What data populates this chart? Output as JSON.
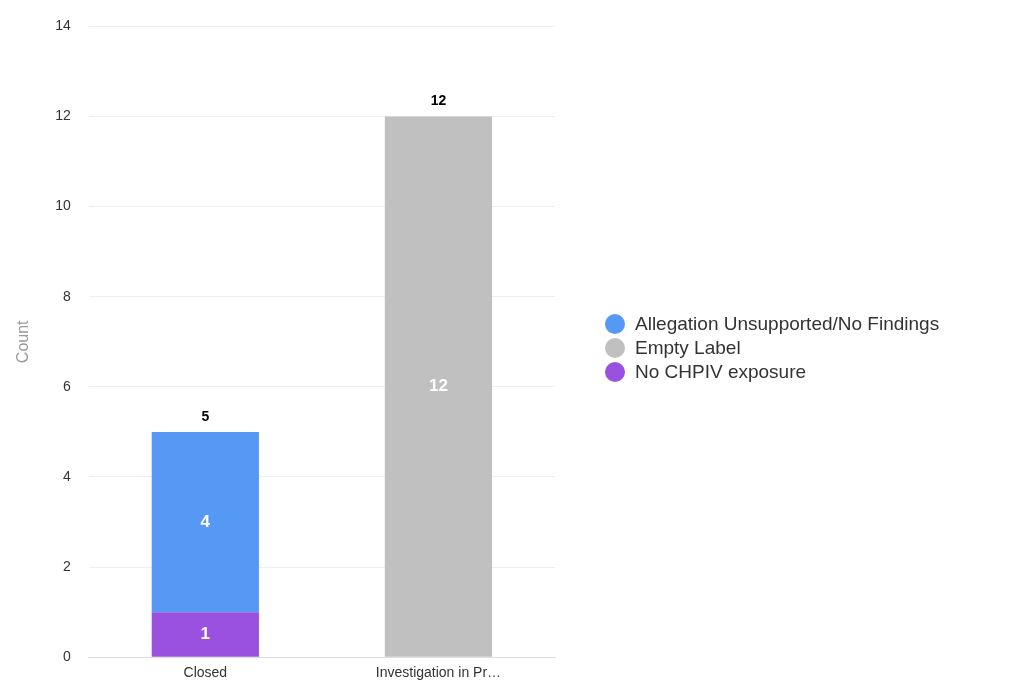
{
  "chart_data": {
    "type": "bar",
    "stacked": true,
    "ylabel": "Count",
    "categories": [
      "Closed",
      "Investigation in Pr…"
    ],
    "series": [
      {
        "name": "No CHPIV exposure",
        "color": "#9b51e0",
        "values": [
          1,
          null
        ]
      },
      {
        "name": "Allegation Unsupported/No Findings",
        "color": "#5599f5",
        "values": [
          4,
          null
        ]
      },
      {
        "name": "Empty Label",
        "color": "#c0c0c0",
        "values": [
          null,
          12
        ]
      }
    ],
    "ylim": [
      0,
      14
    ],
    "yticks": [
      0,
      2,
      4,
      6,
      8,
      10,
      12,
      14
    ],
    "grid": "y",
    "legend": "right",
    "data_labels": true,
    "totals": [
      "5",
      "12"
    ]
  }
}
